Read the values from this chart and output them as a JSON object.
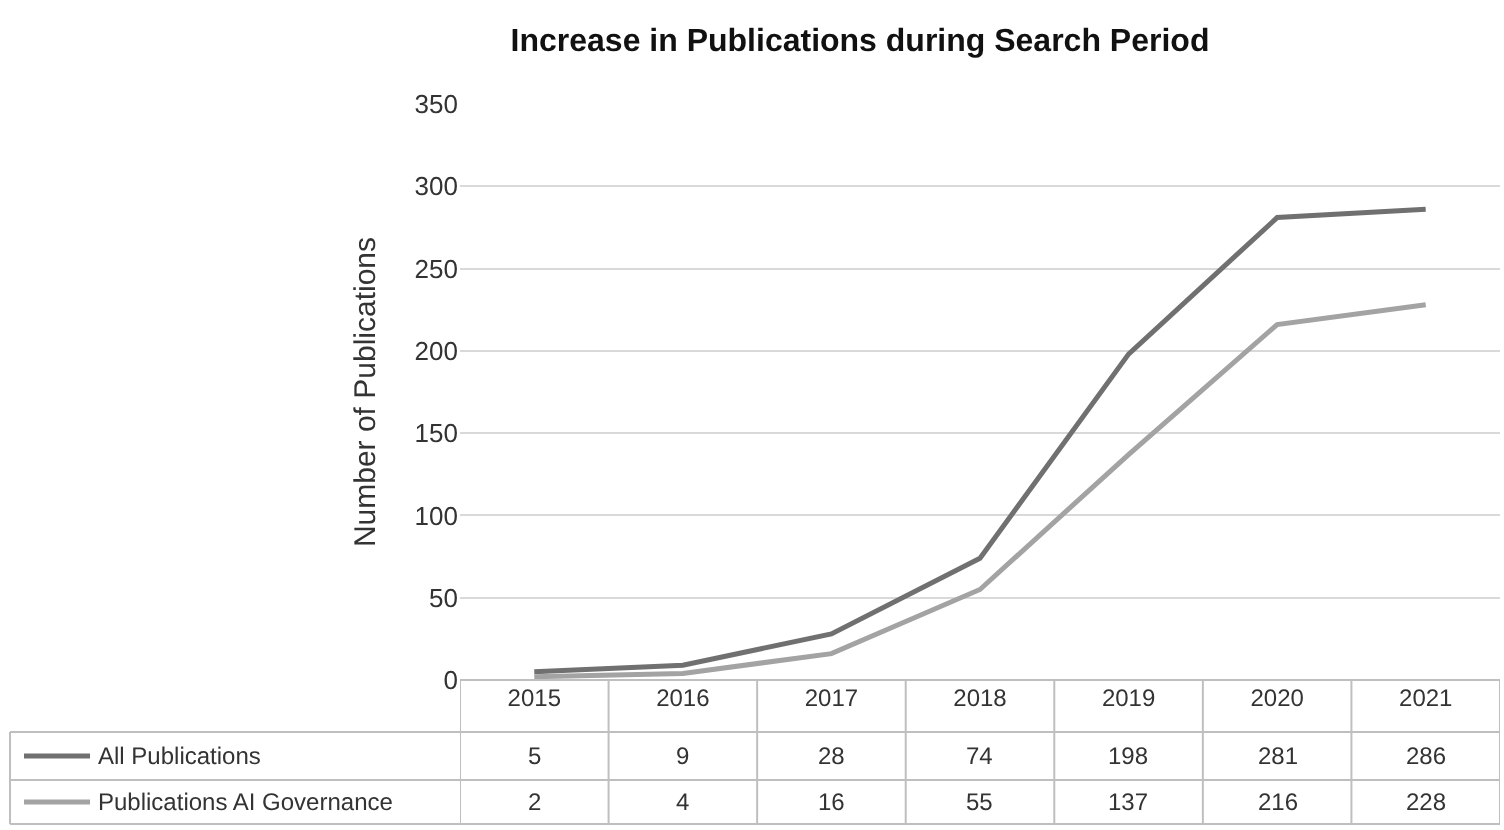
{
  "chart_data": {
    "type": "line",
    "title": "Increase in Publications during Search Period",
    "ylabel": "Number of Publications",
    "categories": [
      "2015",
      "2016",
      "2017",
      "2018",
      "2019",
      "2020",
      "2021"
    ],
    "series": [
      {
        "name": "All Publications",
        "color": "#707070",
        "values": [
          5,
          9,
          28,
          74,
          198,
          281,
          286
        ]
      },
      {
        "name": "Publications AI Governance",
        "color": "#a3a3a3",
        "values": [
          2,
          4,
          16,
          55,
          137,
          216,
          228
        ]
      }
    ],
    "ylim": [
      0,
      350
    ],
    "yticks": [
      0,
      50,
      100,
      150,
      200,
      250,
      300,
      350
    ],
    "grid": "y",
    "legend": "bottom left",
    "data_labels": true,
    "marker": "none",
    "line_style": "solid"
  }
}
